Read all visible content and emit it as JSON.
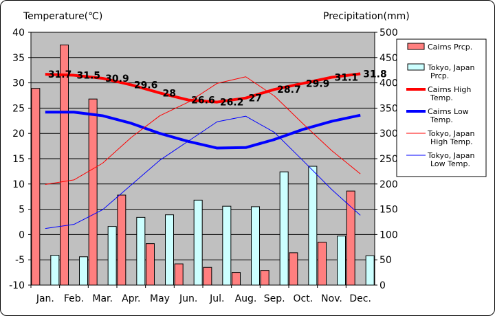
{
  "chart_data": {
    "type": "bar",
    "categories": [
      "Jan.",
      "Feb.",
      "Mar.",
      "Apr.",
      "May",
      "Jun.",
      "Jul.",
      "Aug.",
      "Sep.",
      "Oct.",
      "Nov.",
      "Dec."
    ],
    "y_left": {
      "label": "Temperature(℃)",
      "min": -10,
      "max": 40,
      "ticks": [
        -10,
        -5,
        0,
        5,
        10,
        15,
        20,
        25,
        30,
        35,
        40
      ]
    },
    "y_right": {
      "label": "Precipitation(mm)",
      "min": 0,
      "max": 500,
      "ticks": [
        0,
        50,
        100,
        150,
        200,
        250,
        300,
        350,
        400,
        450,
        500
      ]
    },
    "grid": true,
    "legend_position": "right",
    "series": [
      {
        "name": "Cairns Prcp.",
        "kind": "bar",
        "axis": "right",
        "color": "#ff7f7f",
        "values": [
          389,
          475,
          368,
          178,
          82,
          42,
          35,
          25,
          29,
          64,
          85,
          186
        ]
      },
      {
        "name": "Tokyo, Japan Prcp.",
        "kind": "bar",
        "axis": "right",
        "color": "#ccffff",
        "values": [
          59,
          56,
          116,
          134,
          139,
          168,
          156,
          155,
          224,
          235,
          97,
          58
        ]
      },
      {
        "name": "Cairns High Temp.",
        "kind": "line",
        "axis": "left",
        "color": "#ff0000",
        "width": 4,
        "values": [
          31.7,
          31.5,
          30.9,
          29.6,
          28,
          26.6,
          26.2,
          27,
          28.7,
          29.9,
          31.1,
          31.8
        ],
        "labels": [
          "31.7",
          "31.5",
          "30.9",
          "29.6",
          "28",
          "26.6",
          "26.2",
          "27",
          "28.7",
          "29.9",
          "31.1",
          "31.8"
        ]
      },
      {
        "name": "Cairns Low Temp.",
        "kind": "line",
        "axis": "left",
        "color": "#0000ff",
        "width": 4,
        "values": [
          24.2,
          24.2,
          23.5,
          22,
          20,
          18.4,
          17.1,
          17.2,
          18.8,
          20.8,
          22.4,
          23.6
        ]
      },
      {
        "name": "Tokyo, Japan High Temp.",
        "kind": "line",
        "axis": "left",
        "color": "#ff0000",
        "width": 1,
        "values": [
          9.9,
          10.8,
          14.1,
          19.2,
          23.5,
          26.2,
          29.9,
          31.2,
          27.4,
          21.9,
          16.6,
          12
        ]
      },
      {
        "name": "Tokyo, Japan Low Temp.",
        "kind": "line",
        "axis": "left",
        "color": "#0000ff",
        "width": 1,
        "values": [
          1.2,
          2,
          4.9,
          9.8,
          14.7,
          18.5,
          22.3,
          23.4,
          20.2,
          14.6,
          8.9,
          3.8
        ]
      }
    ],
    "legend": [
      {
        "label": "Cairns Prcp.",
        "kind": "bar",
        "color": "#ff7f7f"
      },
      {
        "label": "Tokyo, Japan Prcp.",
        "kind": "bar",
        "color": "#ccffff"
      },
      {
        "label": "Cairns High Temp.",
        "kind": "line",
        "color": "#ff0000",
        "width": 4
      },
      {
        "label": "Cairns Low Temp.",
        "kind": "line",
        "color": "#0000ff",
        "width": 4
      },
      {
        "label": "Tokyo, Japan High Temp.",
        "kind": "line",
        "color": "#ff0000",
        "width": 1
      },
      {
        "label": "Tokyo, Japan Low Temp.",
        "kind": "line",
        "color": "#0000ff",
        "width": 1
      }
    ]
  }
}
